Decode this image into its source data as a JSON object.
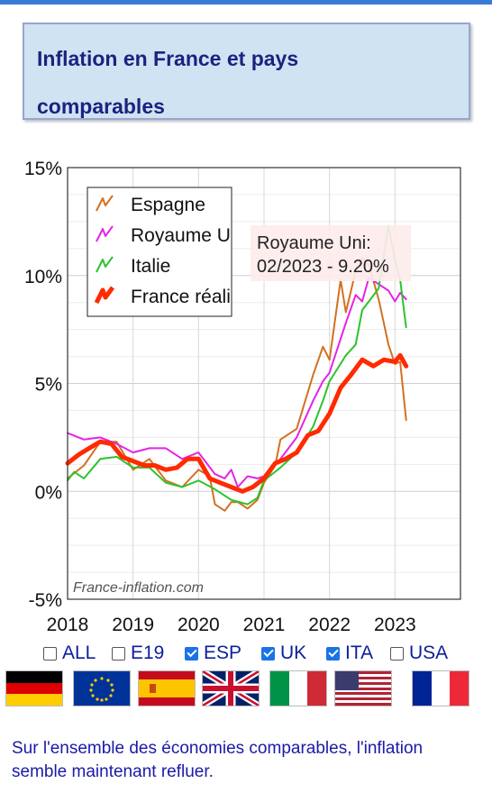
{
  "title": {
    "line1": "Inflation en France et pays",
    "line2": "comparables"
  },
  "chart_data": {
    "type": "line",
    "ylim": [
      -5,
      15
    ],
    "xlim": [
      2018,
      2024
    ],
    "yticks": [
      -5,
      0,
      5,
      10,
      15
    ],
    "ytick_labels": [
      "-5%",
      "0%",
      "5%",
      "10%",
      "15%"
    ],
    "xticks": [
      2018,
      2019,
      2020,
      2021,
      2022,
      2023
    ],
    "xtick_labels": [
      "2018",
      "2019",
      "2020",
      "2021",
      "2022",
      "2023"
    ],
    "grid": true,
    "legend_position": "top-left",
    "watermark": "France-inflation.com",
    "tooltip": {
      "line1": "Royaume Uni:",
      "line2": "02/2023 - 9.20%"
    },
    "series": [
      {
        "name": "Espagne",
        "color": "#d4701f",
        "width": 2,
        "x": [
          2018.0,
          2018.25,
          2018.5,
          2018.75,
          2019.0,
          2019.25,
          2019.5,
          2019.75,
          2020.0,
          2020.17,
          2020.25,
          2020.4,
          2020.5,
          2020.6,
          2020.75,
          2020.9,
          2021.0,
          2021.17,
          2021.25,
          2021.5,
          2021.75,
          2021.9,
          2022.0,
          2022.17,
          2022.25,
          2022.4,
          2022.5,
          2022.6,
          2022.75,
          2022.9,
          2023.0,
          2023.08,
          2023.17
        ],
        "y": [
          0.6,
          1.2,
          2.3,
          2.3,
          1.0,
          1.5,
          0.5,
          0.2,
          1.0,
          0.7,
          -0.6,
          -0.9,
          -0.5,
          -0.5,
          -0.8,
          -0.4,
          0.4,
          1.2,
          2.4,
          2.9,
          5.4,
          6.7,
          6.1,
          9.8,
          8.3,
          10.2,
          10.8,
          10.5,
          8.9,
          6.8,
          5.9,
          6.0,
          3.3
        ]
      },
      {
        "name": "Royaume Uni",
        "color": "#e623e6",
        "width": 2,
        "x": [
          2018.0,
          2018.25,
          2018.5,
          2018.75,
          2019.0,
          2019.25,
          2019.5,
          2019.75,
          2020.0,
          2020.25,
          2020.4,
          2020.5,
          2020.6,
          2020.75,
          2020.9,
          2021.0,
          2021.25,
          2021.5,
          2021.75,
          2021.9,
          2022.0,
          2022.25,
          2022.4,
          2022.5,
          2022.6,
          2022.75,
          2022.9,
          2023.0,
          2023.08,
          2023.17
        ],
        "y": [
          2.7,
          2.4,
          2.5,
          2.2,
          1.8,
          2.0,
          2.0,
          1.5,
          1.8,
          0.8,
          0.6,
          1.0,
          0.2,
          0.7,
          0.6,
          0.7,
          1.5,
          2.5,
          4.2,
          5.1,
          5.5,
          7.8,
          9.1,
          8.8,
          9.9,
          9.6,
          9.3,
          8.8,
          9.2,
          8.9
        ]
      },
      {
        "name": "Italie",
        "color": "#2cc32c",
        "width": 2,
        "x": [
          2018.0,
          2018.1,
          2018.25,
          2018.5,
          2018.75,
          2019.0,
          2019.25,
          2019.5,
          2019.75,
          2020.0,
          2020.25,
          2020.5,
          2020.75,
          2020.9,
          2021.0,
          2021.25,
          2021.5,
          2021.75,
          2021.9,
          2022.0,
          2022.25,
          2022.4,
          2022.5,
          2022.75,
          2022.9,
          2023.0,
          2023.08,
          2023.17
        ],
        "y": [
          0.5,
          0.9,
          0.6,
          1.5,
          1.6,
          1.1,
          1.1,
          0.4,
          0.2,
          0.5,
          0.1,
          -0.4,
          -0.6,
          -0.3,
          0.5,
          1.1,
          1.8,
          3.0,
          4.2,
          5.1,
          6.3,
          6.8,
          8.4,
          9.4,
          12.3,
          10.7,
          9.8,
          7.6
        ]
      },
      {
        "name": "France réalisée",
        "color": "#ff2a00",
        "width": 5,
        "x": [
          2018.0,
          2018.17,
          2018.33,
          2018.5,
          2018.67,
          2018.83,
          2019.0,
          2019.17,
          2019.33,
          2019.5,
          2019.67,
          2019.83,
          2020.0,
          2020.17,
          2020.33,
          2020.5,
          2020.67,
          2020.83,
          2021.0,
          2021.17,
          2021.33,
          2021.5,
          2021.67,
          2021.83,
          2022.0,
          2022.17,
          2022.33,
          2022.5,
          2022.67,
          2022.83,
          2023.0,
          2023.08,
          2023.17
        ],
        "y": [
          1.3,
          1.7,
          2.0,
          2.3,
          2.2,
          1.6,
          1.4,
          1.2,
          1.2,
          1.0,
          1.1,
          1.5,
          1.5,
          0.6,
          0.4,
          0.2,
          0.0,
          0.2,
          0.6,
          1.3,
          1.5,
          1.8,
          2.6,
          2.8,
          3.6,
          4.8,
          5.4,
          6.1,
          5.8,
          6.1,
          6.0,
          6.3,
          5.8
        ]
      }
    ]
  },
  "legend": {
    "items": [
      "Espagne",
      "Royaume Uni",
      "Italie",
      "France réalisée"
    ]
  },
  "checkboxes": [
    {
      "label": "ALL",
      "checked": false
    },
    {
      "label": "E19",
      "checked": false
    },
    {
      "label": "ESP",
      "checked": true
    },
    {
      "label": "UK",
      "checked": true
    },
    {
      "label": "ITA",
      "checked": true
    },
    {
      "label": "USA",
      "checked": false
    }
  ],
  "flags": [
    "germany-flag",
    "eu-flag",
    "spain-flag",
    "uk-flag",
    "italy-flag",
    "usa-flag",
    "france-flag"
  ],
  "note": "Sur l'ensemble des économies comparables, l'inflation semble maintenant refluer."
}
